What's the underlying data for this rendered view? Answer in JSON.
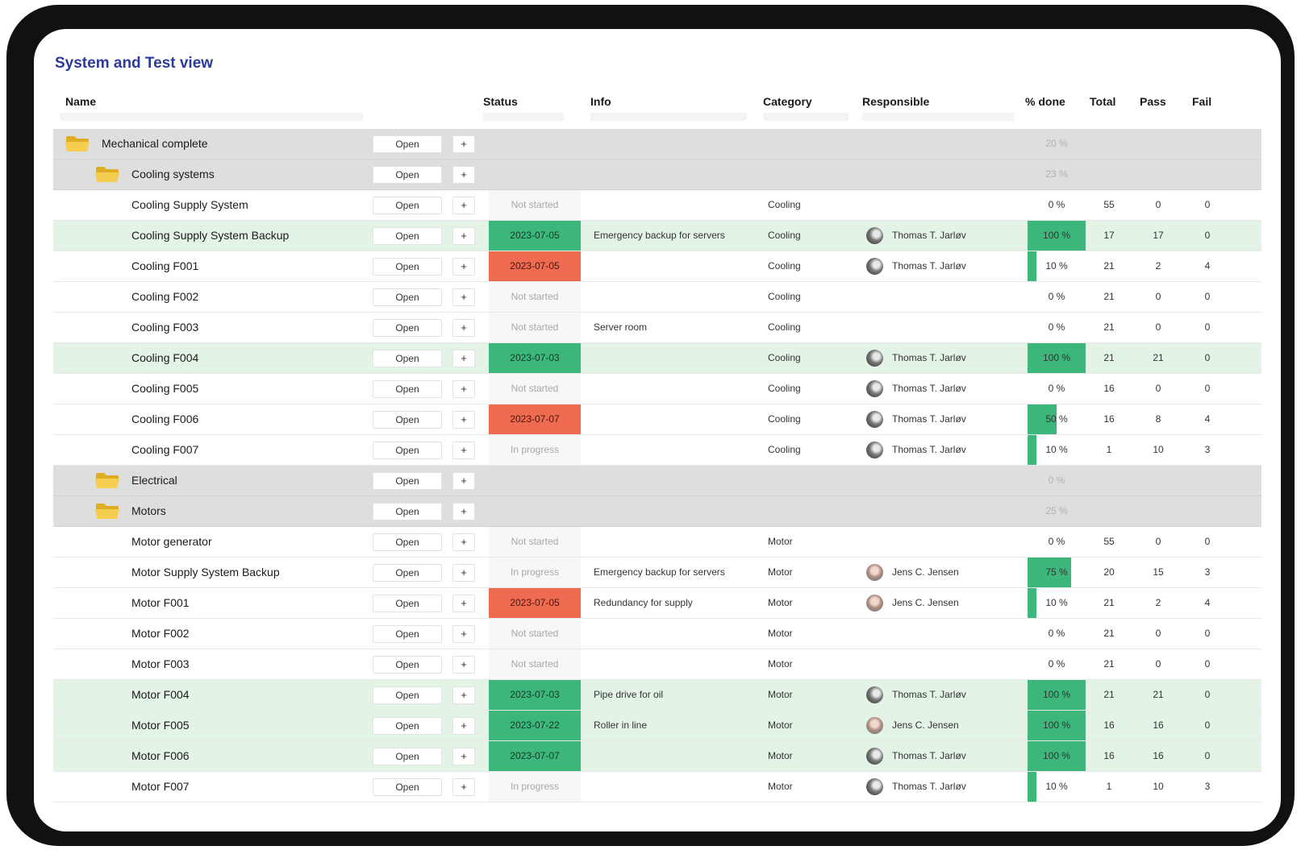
{
  "title": "System and Test view",
  "columns": {
    "name": "Name",
    "status": "Status",
    "info": "Info",
    "category": "Category",
    "responsible": "Responsible",
    "pct_done": "% done",
    "total": "Total",
    "pass": "Pass",
    "fail": "Fail"
  },
  "colors": {
    "accent_title": "#2b3a9c",
    "status_done": "#3db67b",
    "status_overdue": "#ee6b52",
    "row_done": "#e3f3e5",
    "folder_row": "#dedede",
    "folder_icon": "#f2c94c"
  },
  "rows": [
    {
      "kind": "folder",
      "level": 0,
      "name": "Mechanical complete",
      "open_label": "Open",
      "plus_label": "+",
      "pct": "20 %",
      "pct_value": 20
    },
    {
      "kind": "folder",
      "level": 1,
      "name": "Cooling systems",
      "open_label": "Open",
      "plus_label": "+",
      "pct": "23 %",
      "pct_value": 23
    },
    {
      "kind": "item",
      "name": "Cooling Supply System",
      "open_label": "Open",
      "plus_label": "+",
      "status": "Not started",
      "status_type": "none",
      "info": "",
      "category": "Cooling",
      "responsible": "",
      "avatar": "",
      "pct": "0 %",
      "pct_value": 0,
      "total": "55",
      "pass": "0",
      "fail": "0",
      "done": false
    },
    {
      "kind": "item",
      "name": "Cooling Supply System Backup",
      "open_label": "Open",
      "plus_label": "+",
      "status": "2023-07-05",
      "status_type": "green",
      "info": "Emergency backup for servers",
      "category": "Cooling",
      "responsible": "Thomas T. Jarløv",
      "avatar": "dark",
      "pct": "100 %",
      "pct_value": 100,
      "total": "17",
      "pass": "17",
      "fail": "0",
      "done": true
    },
    {
      "kind": "item",
      "name": "Cooling F001",
      "open_label": "Open",
      "plus_label": "+",
      "status": "2023-07-05",
      "status_type": "red",
      "info": "",
      "category": "Cooling",
      "responsible": "Thomas T. Jarløv",
      "avatar": "dark",
      "pct": "10 %",
      "pct_value": 10,
      "total": "21",
      "pass": "2",
      "fail": "4",
      "done": false
    },
    {
      "kind": "item",
      "name": "Cooling F002",
      "open_label": "Open",
      "plus_label": "+",
      "status": "Not started",
      "status_type": "none",
      "info": "",
      "category": "Cooling",
      "responsible": "",
      "avatar": "",
      "pct": "0 %",
      "pct_value": 0,
      "total": "21",
      "pass": "0",
      "fail": "0",
      "done": false
    },
    {
      "kind": "item",
      "name": "Cooling F003",
      "open_label": "Open",
      "plus_label": "+",
      "status": "Not started",
      "status_type": "none",
      "info": "Server room",
      "category": "Cooling",
      "responsible": "",
      "avatar": "",
      "pct": "0 %",
      "pct_value": 0,
      "total": "21",
      "pass": "0",
      "fail": "0",
      "done": false
    },
    {
      "kind": "item",
      "name": "Cooling F004",
      "open_label": "Open",
      "plus_label": "+",
      "status": "2023-07-03",
      "status_type": "green",
      "info": "",
      "category": "Cooling",
      "responsible": "Thomas T. Jarløv",
      "avatar": "dark",
      "pct": "100 %",
      "pct_value": 100,
      "total": "21",
      "pass": "21",
      "fail": "0",
      "done": true
    },
    {
      "kind": "item",
      "name": "Cooling F005",
      "open_label": "Open",
      "plus_label": "+",
      "status": "Not started",
      "status_type": "none",
      "info": "",
      "category": "Cooling",
      "responsible": "Thomas T. Jarløv",
      "avatar": "dark",
      "pct": "0 %",
      "pct_value": 0,
      "total": "16",
      "pass": "0",
      "fail": "0",
      "done": false
    },
    {
      "kind": "item",
      "name": "Cooling F006",
      "open_label": "Open",
      "plus_label": "+",
      "status": "2023-07-07",
      "status_type": "red",
      "info": "",
      "category": "Cooling",
      "responsible": "Thomas T. Jarløv",
      "avatar": "dark",
      "pct": "50 %",
      "pct_value": 50,
      "total": "16",
      "pass": "8",
      "fail": "4",
      "done": false
    },
    {
      "kind": "item",
      "name": "Cooling F007",
      "open_label": "Open",
      "plus_label": "+",
      "status": "In progress",
      "status_type": "none",
      "info": "",
      "category": "Cooling",
      "responsible": "Thomas T. Jarløv",
      "avatar": "dark",
      "pct": "10 %",
      "pct_value": 10,
      "total": "1",
      "pass": "10",
      "fail": "3",
      "done": false
    },
    {
      "kind": "folder",
      "level": 1,
      "name": "Electrical",
      "open_label": "Open",
      "plus_label": "+",
      "pct": "0 %",
      "pct_value": 0
    },
    {
      "kind": "folder",
      "level": 1,
      "name": "Motors",
      "open_label": "Open",
      "plus_label": "+",
      "pct": "25 %",
      "pct_value": 25
    },
    {
      "kind": "item",
      "name": "Motor generator",
      "open_label": "Open",
      "plus_label": "+",
      "status": "Not started",
      "status_type": "none",
      "info": "",
      "category": "Motor",
      "responsible": "",
      "avatar": "",
      "pct": "0 %",
      "pct_value": 0,
      "total": "55",
      "pass": "0",
      "fail": "0",
      "done": false
    },
    {
      "kind": "item",
      "name": "Motor Supply System Backup",
      "open_label": "Open",
      "plus_label": "+",
      "status": "In progress",
      "status_type": "none",
      "info": "Emergency backup for servers",
      "category": "Motor",
      "responsible": "Jens C. Jensen",
      "avatar": "light",
      "pct": "75 %",
      "pct_value": 75,
      "total": "20",
      "pass": "15",
      "fail": "3",
      "done": false
    },
    {
      "kind": "item",
      "name": "Motor F001",
      "open_label": "Open",
      "plus_label": "+",
      "status": "2023-07-05",
      "status_type": "red",
      "info": "Redundancy for supply",
      "category": "Motor",
      "responsible": "Jens C. Jensen",
      "avatar": "light",
      "pct": "10 %",
      "pct_value": 10,
      "total": "21",
      "pass": "2",
      "fail": "4",
      "done": false
    },
    {
      "kind": "item",
      "name": "Motor F002",
      "open_label": "Open",
      "plus_label": "+",
      "status": "Not started",
      "status_type": "none",
      "info": "",
      "category": "Motor",
      "responsible": "",
      "avatar": "",
      "pct": "0 %",
      "pct_value": 0,
      "total": "21",
      "pass": "0",
      "fail": "0",
      "done": false
    },
    {
      "kind": "item",
      "name": "Motor F003",
      "open_label": "Open",
      "plus_label": "+",
      "status": "Not started",
      "status_type": "none",
      "info": "",
      "category": "Motor",
      "responsible": "",
      "avatar": "",
      "pct": "0 %",
      "pct_value": 0,
      "total": "21",
      "pass": "0",
      "fail": "0",
      "done": false
    },
    {
      "kind": "item",
      "name": "Motor F004",
      "open_label": "Open",
      "plus_label": "+",
      "status": "2023-07-03",
      "status_type": "green",
      "info": "Pipe drive for oil",
      "category": "Motor",
      "responsible": "Thomas T. Jarløv",
      "avatar": "dark",
      "pct": "100 %",
      "pct_value": 100,
      "total": "21",
      "pass": "21",
      "fail": "0",
      "done": true
    },
    {
      "kind": "item",
      "name": "Motor F005",
      "open_label": "Open",
      "plus_label": "+",
      "status": "2023-07-22",
      "status_type": "green",
      "info": "Roller in line",
      "category": "Motor",
      "responsible": "Jens C. Jensen",
      "avatar": "light",
      "pct": "100 %",
      "pct_value": 100,
      "total": "16",
      "pass": "16",
      "fail": "0",
      "done": true
    },
    {
      "kind": "item",
      "name": "Motor F006",
      "open_label": "Open",
      "plus_label": "+",
      "status": "2023-07-07",
      "status_type": "green",
      "info": "",
      "category": "Motor",
      "responsible": "Thomas T. Jarløv",
      "avatar": "dark",
      "pct": "100 %",
      "pct_value": 100,
      "total": "16",
      "pass": "16",
      "fail": "0",
      "done": true
    },
    {
      "kind": "item",
      "name": "Motor F007",
      "open_label": "Open",
      "plus_label": "+",
      "status": "In progress",
      "status_type": "none",
      "info": "",
      "category": "Motor",
      "responsible": "Thomas T. Jarløv",
      "avatar": "dark",
      "pct": "10 %",
      "pct_value": 10,
      "total": "1",
      "pass": "10",
      "fail": "3",
      "done": false
    }
  ]
}
